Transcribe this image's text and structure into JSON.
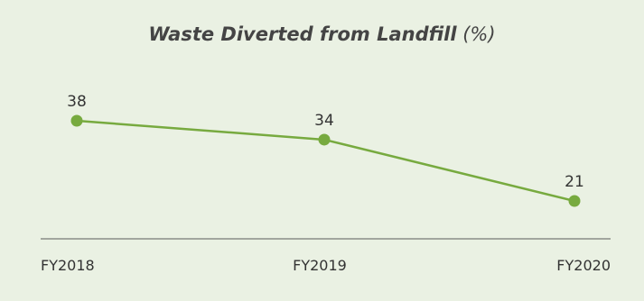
{
  "chart": {
    "title_main": "Waste Diverted from Landfill",
    "title_unit": "(%)"
  },
  "colors": {
    "background": "#eaf1e3",
    "series_line": "#77aa3f",
    "point_fill": "#77aa3f",
    "axis": "#5a5a5a",
    "text": "#333333"
  },
  "chart_data": {
    "type": "line",
    "title": "Waste Diverted from Landfill (%)",
    "categories": [
      "FY2018",
      "FY2019",
      "FY2020"
    ],
    "series": [
      {
        "values": [
          38,
          34,
          21
        ]
      }
    ],
    "data_labels": [
      "38",
      "34",
      "21"
    ],
    "xlabel": "",
    "ylabel": "",
    "ylim": [
      0,
      45
    ],
    "grid": false,
    "legend": "none"
  }
}
